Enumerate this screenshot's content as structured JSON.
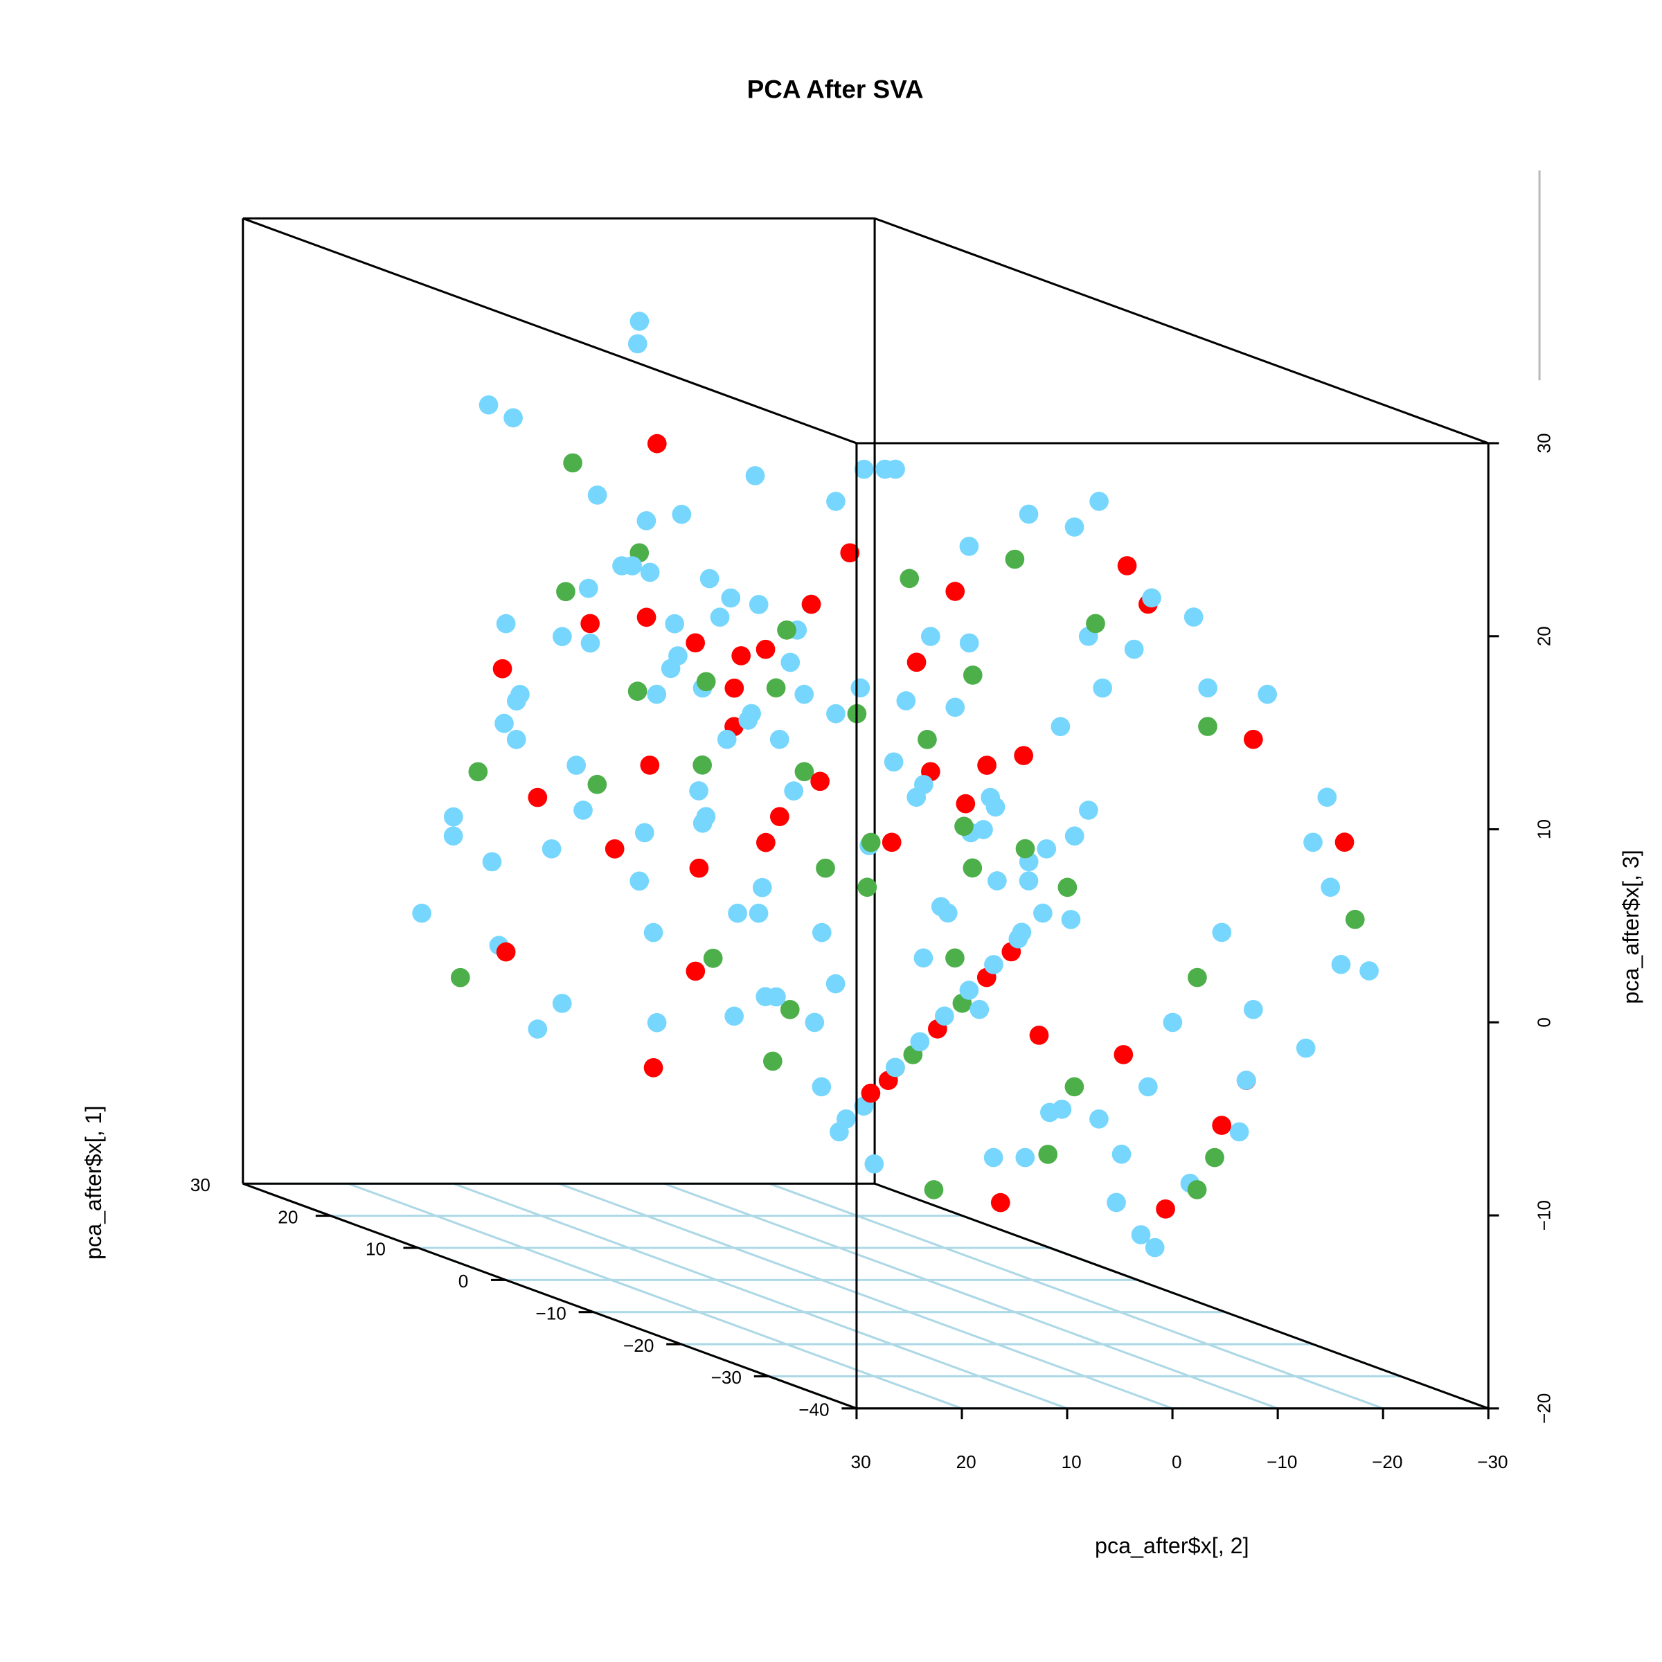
{
  "chart_data": {
    "type": "scatter",
    "subtype": "scatter3d",
    "title": "PCA After SVA",
    "xlabel": "pca_after$x[, 2]",
    "ylabel": "pca_after$x[, 1]",
    "zlabel": "pca_after$x[, 3]",
    "xlim": [
      30,
      -30
    ],
    "ylim": [
      -40,
      30
    ],
    "zlim": [
      -20,
      30
    ],
    "x_ticks": [
      "30",
      "20",
      "10",
      "0",
      "−10",
      "−20",
      "−30"
    ],
    "x_tick_values": [
      30,
      20,
      10,
      0,
      -10,
      -20,
      -30
    ],
    "y_ticks": [
      "−40",
      "−30",
      "−20",
      "−10",
      "0",
      "10",
      "20",
      "30"
    ],
    "y_tick_values": [
      -40,
      -30,
      -20,
      -10,
      0,
      10,
      20,
      30
    ],
    "z_ticks": [
      "−20",
      "−10",
      "0",
      "10",
      "20",
      "30"
    ],
    "z_tick_values": [
      -20,
      -10,
      0,
      10,
      20,
      30
    ],
    "grid": true,
    "colors": {
      "b": "#76d6fd",
      "r": "#ff0000",
      "g": "#4caf4a"
    },
    "point_format": [
      "pc2",
      "pc1",
      "pc3",
      "group"
    ],
    "points": [
      [
        5,
        15,
        26,
        "b"
      ],
      [
        4,
        16,
        27,
        "b"
      ],
      [
        -2,
        10,
        20,
        "b"
      ],
      [
        -14,
        12,
        20,
        "b"
      ],
      [
        -6,
        0,
        22,
        "b"
      ],
      [
        10,
        8,
        18,
        "b"
      ],
      [
        18,
        5,
        15,
        "b"
      ],
      [
        22,
        0,
        14,
        "r"
      ],
      [
        14,
        4,
        17,
        "g"
      ],
      [
        8,
        12,
        15,
        "b"
      ],
      [
        20,
        12,
        12,
        "b"
      ],
      [
        26,
        5,
        8,
        "b"
      ],
      [
        27,
        2,
        10,
        "b"
      ],
      [
        24,
        6,
        9,
        "b"
      ],
      [
        22,
        10,
        10,
        "r"
      ],
      [
        30,
        6,
        2,
        "b"
      ],
      [
        29,
        0,
        8,
        "b"
      ],
      [
        26,
        -4,
        5,
        "b"
      ],
      [
        23,
        -2,
        6,
        "g"
      ],
      [
        21,
        -5,
        4,
        "b"
      ],
      [
        18,
        -2,
        7,
        "r"
      ],
      [
        16,
        -6,
        5,
        "b"
      ],
      [
        15,
        3,
        10,
        "g"
      ],
      [
        12,
        2,
        12,
        "b"
      ],
      [
        10,
        -2,
        9,
        "r"
      ],
      [
        8,
        4,
        10,
        "b"
      ],
      [
        6,
        -4,
        6,
        "b"
      ],
      [
        4,
        0,
        4,
        "r"
      ],
      [
        2,
        6,
        8,
        "b"
      ],
      [
        0,
        2,
        6,
        "g"
      ],
      [
        -2,
        -3,
        3,
        "b"
      ],
      [
        -4,
        5,
        5,
        "r"
      ],
      [
        -6,
        -1,
        7,
        "b"
      ],
      [
        -8,
        4,
        2,
        "g"
      ],
      [
        -10,
        -5,
        4,
        "b"
      ],
      [
        -12,
        2,
        6,
        "r"
      ],
      [
        -14,
        -3,
        5,
        "b"
      ],
      [
        -16,
        3,
        3,
        "g"
      ],
      [
        -18,
        -2,
        2,
        "b"
      ],
      [
        -20,
        1,
        7,
        "r"
      ],
      [
        -22,
        -4,
        5,
        "b"
      ],
      [
        -24,
        0,
        3,
        "b"
      ],
      [
        -26,
        4,
        8,
        "b"
      ],
      [
        -21,
        8,
        10,
        "g"
      ],
      [
        -19,
        6,
        12,
        "b"
      ],
      [
        -17,
        -8,
        0,
        "b"
      ],
      [
        -15,
        -10,
        2,
        "g"
      ],
      [
        -13,
        -6,
        -2,
        "r"
      ],
      [
        -11,
        -12,
        1,
        "b"
      ],
      [
        -9,
        -8,
        -3,
        "r"
      ],
      [
        -7,
        -14,
        0,
        "b"
      ],
      [
        -5,
        -10,
        -4,
        "g"
      ],
      [
        -3,
        -16,
        -1,
        "b"
      ],
      [
        -1,
        -12,
        -5,
        "r"
      ],
      [
        1,
        -18,
        -2,
        "b"
      ],
      [
        3,
        -14,
        -6,
        "g"
      ],
      [
        5,
        -20,
        -3,
        "b"
      ],
      [
        7,
        -16,
        -7,
        "r"
      ],
      [
        9,
        -22,
        -4,
        "b"
      ],
      [
        11,
        -18,
        -8,
        "b"
      ],
      [
        13,
        -24,
        -5,
        "g"
      ],
      [
        15,
        -20,
        -9,
        "b"
      ],
      [
        17,
        -26,
        -6,
        "r"
      ],
      [
        19,
        -22,
        -3,
        "b"
      ],
      [
        21,
        -28,
        -7,
        "b"
      ],
      [
        23,
        -24,
        -2,
        "g"
      ],
      [
        25,
        -30,
        -5,
        "b"
      ],
      [
        27,
        -26,
        -1,
        "b"
      ],
      [
        20,
        -30,
        -9,
        "b"
      ],
      [
        16,
        -32,
        -10,
        "g"
      ],
      [
        12,
        -34,
        -8,
        "b"
      ],
      [
        8,
        -30,
        -11,
        "r"
      ],
      [
        4,
        -28,
        -9,
        "b"
      ],
      [
        0,
        -26,
        -7,
        "b"
      ],
      [
        -4,
        -24,
        -6,
        "g"
      ],
      [
        -8,
        -22,
        -8,
        "b"
      ],
      [
        -12,
        -20,
        -5,
        "r"
      ],
      [
        -16,
        -18,
        -7,
        "b"
      ],
      [
        -20,
        -16,
        -4,
        "b"
      ],
      [
        -24,
        -14,
        -2,
        "g"
      ],
      [
        -28,
        -12,
        0,
        "b"
      ],
      [
        -26,
        -18,
        -3,
        "b"
      ],
      [
        -22,
        -22,
        -6,
        "r"
      ],
      [
        -18,
        -26,
        -8,
        "b"
      ],
      [
        -14,
        -28,
        -9,
        "g"
      ],
      [
        -10,
        -30,
        -10,
        "b"
      ],
      [
        -6,
        -32,
        -11,
        "r"
      ],
      [
        -2,
        -34,
        -12,
        "b"
      ],
      [
        2,
        -36,
        -10,
        "b"
      ],
      [
        6,
        -33,
        -8,
        "g"
      ],
      [
        10,
        -10,
        12,
        "b"
      ],
      [
        12,
        -8,
        14,
        "r"
      ],
      [
        14,
        -12,
        10,
        "b"
      ],
      [
        16,
        -14,
        13,
        "g"
      ],
      [
        18,
        -10,
        16,
        "b"
      ],
      [
        20,
        -16,
        12,
        "b"
      ],
      [
        22,
        -12,
        15,
        "r"
      ],
      [
        24,
        -18,
        11,
        "b"
      ],
      [
        26,
        -14,
        14,
        "b"
      ],
      [
        28,
        -20,
        10,
        "g"
      ],
      [
        29,
        -16,
        13,
        "b"
      ],
      [
        30,
        -22,
        9,
        "b"
      ],
      [
        6,
        -6,
        16,
        "b"
      ],
      [
        4,
        -8,
        19,
        "r"
      ],
      [
        2,
        -4,
        21,
        "b"
      ],
      [
        0,
        -10,
        18,
        "g"
      ],
      [
        -2,
        -6,
        23,
        "b"
      ],
      [
        -4,
        -12,
        20,
        "b"
      ],
      [
        -6,
        -8,
        17,
        "r"
      ],
      [
        -8,
        -14,
        22,
        "b"
      ],
      [
        -10,
        -10,
        19,
        "g"
      ],
      [
        -12,
        -16,
        16,
        "b"
      ],
      [
        -14,
        -12,
        21,
        "b"
      ],
      [
        -16,
        -18,
        18,
        "r"
      ],
      [
        -18,
        -14,
        15,
        "b"
      ],
      [
        -20,
        -20,
        12,
        "g"
      ],
      [
        -22,
        -16,
        17,
        "b"
      ],
      [
        -24,
        -22,
        14,
        "b"
      ],
      [
        -26,
        -18,
        11,
        "r"
      ],
      [
        -28,
        -24,
        9,
        "b"
      ],
      [
        -30,
        -20,
        6,
        "b"
      ],
      [
        -29,
        -26,
        3,
        "g"
      ],
      [
        -27,
        -30,
        1,
        "b"
      ],
      [
        -25,
        -28,
        5,
        "b"
      ],
      [
        -23,
        -32,
        8,
        "r"
      ],
      [
        -21,
        -34,
        2,
        "b"
      ],
      [
        8,
        20,
        10,
        "b"
      ],
      [
        6,
        22,
        12,
        "g"
      ],
      [
        4,
        18,
        14,
        "b"
      ],
      [
        2,
        24,
        9,
        "b"
      ],
      [
        0,
        20,
        11,
        "r"
      ],
      [
        -2,
        22,
        13,
        "b"
      ],
      [
        -4,
        18,
        8,
        "g"
      ],
      [
        -6,
        24,
        10,
        "b"
      ],
      [
        -8,
        20,
        12,
        "b"
      ],
      [
        -10,
        22,
        7,
        "r"
      ],
      [
        -12,
        18,
        9,
        "b"
      ],
      [
        -14,
        24,
        11,
        "b"
      ],
      [
        10,
        16,
        4,
        "b"
      ],
      [
        12,
        18,
        2,
        "r"
      ],
      [
        14,
        14,
        0,
        "b"
      ],
      [
        16,
        20,
        3,
        "g"
      ],
      [
        18,
        16,
        -1,
        "b"
      ],
      [
        20,
        18,
        1,
        "b"
      ],
      [
        -6,
        14,
        -2,
        "b"
      ],
      [
        -8,
        16,
        0,
        "r"
      ],
      [
        -10,
        12,
        -4,
        "b"
      ],
      [
        -12,
        14,
        -1,
        "g"
      ],
      [
        -4,
        12,
        -3,
        "b"
      ],
      [
        -2,
        16,
        1,
        "b"
      ],
      [
        3,
        6,
        -2,
        "b"
      ],
      [
        5,
        8,
        0,
        "r"
      ],
      [
        7,
        4,
        -4,
        "g"
      ],
      [
        9,
        10,
        -1,
        "b"
      ],
      [
        11,
        6,
        -3,
        "b"
      ],
      [
        13,
        8,
        1,
        "r"
      ],
      [
        -3,
        -20,
        4,
        "b"
      ],
      [
        -1,
        -22,
        6,
        "g"
      ],
      [
        1,
        -24,
        2,
        "b"
      ],
      [
        3,
        -20,
        8,
        "r"
      ],
      [
        5,
        -26,
        5,
        "b"
      ],
      [
        7,
        -22,
        3,
        "b"
      ],
      [
        9,
        -28,
        6,
        "g"
      ],
      [
        11,
        -24,
        9,
        "b"
      ],
      [
        13,
        -30,
        4,
        "b"
      ],
      [
        15,
        -26,
        7,
        "r"
      ],
      [
        17,
        -32,
        2,
        "b"
      ],
      [
        19,
        -28,
        5,
        "g"
      ],
      [
        -11,
        -2,
        10,
        "b"
      ],
      [
        -9,
        0,
        12,
        "r"
      ],
      [
        -7,
        -4,
        14,
        "b"
      ],
      [
        -5,
        2,
        9,
        "g"
      ],
      [
        -3,
        -6,
        11,
        "b"
      ],
      [
        -1,
        4,
        13,
        "b"
      ],
      [
        1,
        0,
        15,
        "r"
      ],
      [
        3,
        -8,
        12,
        "b"
      ],
      [
        5,
        -2,
        14,
        "g"
      ],
      [
        7,
        -10,
        11,
        "b"
      ],
      [
        9,
        2,
        16,
        "b"
      ],
      [
        11,
        -4,
        13,
        "r"
      ],
      [
        -18,
        10,
        4,
        "b"
      ],
      [
        -20,
        12,
        6,
        "g"
      ],
      [
        -22,
        8,
        2,
        "b"
      ],
      [
        -24,
        10,
        5,
        "r"
      ],
      [
        -26,
        12,
        3,
        "b"
      ],
      [
        -28,
        8,
        1,
        "b"
      ],
      [
        24,
        8,
        -4,
        "b"
      ],
      [
        26,
        10,
        -6,
        "g"
      ],
      [
        22,
        6,
        -8,
        "b"
      ],
      [
        20,
        12,
        -5,
        "r"
      ],
      [
        18,
        8,
        -7,
        "b"
      ],
      [
        28,
        12,
        -3,
        "b"
      ],
      [
        0,
        -38,
        -12,
        "b"
      ],
      [
        -4,
        -38,
        -9,
        "g"
      ],
      [
        4,
        -39,
        -7,
        "b"
      ],
      [
        -8,
        -36,
        -6,
        "r"
      ],
      [
        8,
        -37,
        -5,
        "b"
      ],
      [
        -12,
        -34,
        -4,
        "b"
      ],
      [
        6,
        28,
        20,
        "b"
      ],
      [
        2,
        26,
        18,
        "g"
      ],
      [
        -2,
        28,
        16,
        "b"
      ],
      [
        -6,
        26,
        19,
        "r"
      ],
      [
        10,
        26,
        21,
        "b"
      ],
      [
        -10,
        28,
        15,
        "b"
      ],
      [
        0,
        10,
        -8,
        "b"
      ],
      [
        2,
        12,
        -6,
        "r"
      ],
      [
        -2,
        8,
        -10,
        "g"
      ],
      [
        4,
        14,
        -9,
        "b"
      ],
      [
        -4,
        10,
        -7,
        "b"
      ],
      [
        6,
        12,
        -11,
        "r"
      ],
      [
        15,
        -36,
        0,
        "b"
      ],
      [
        19,
        -38,
        3,
        "g"
      ],
      [
        23,
        -36,
        -3,
        "b"
      ],
      [
        11,
        -38,
        -1,
        "r"
      ],
      [
        27,
        -34,
        1,
        "b"
      ],
      [
        -16,
        -36,
        -2,
        "b"
      ],
      [
        -30,
        -8,
        12,
        "b"
      ],
      [
        -28,
        -4,
        16,
        "b"
      ],
      [
        -26,
        0,
        14,
        "g"
      ],
      [
        -30,
        4,
        10,
        "b"
      ],
      [
        -24,
        -6,
        18,
        "r"
      ],
      [
        -28,
        2,
        20,
        "b"
      ]
    ]
  }
}
